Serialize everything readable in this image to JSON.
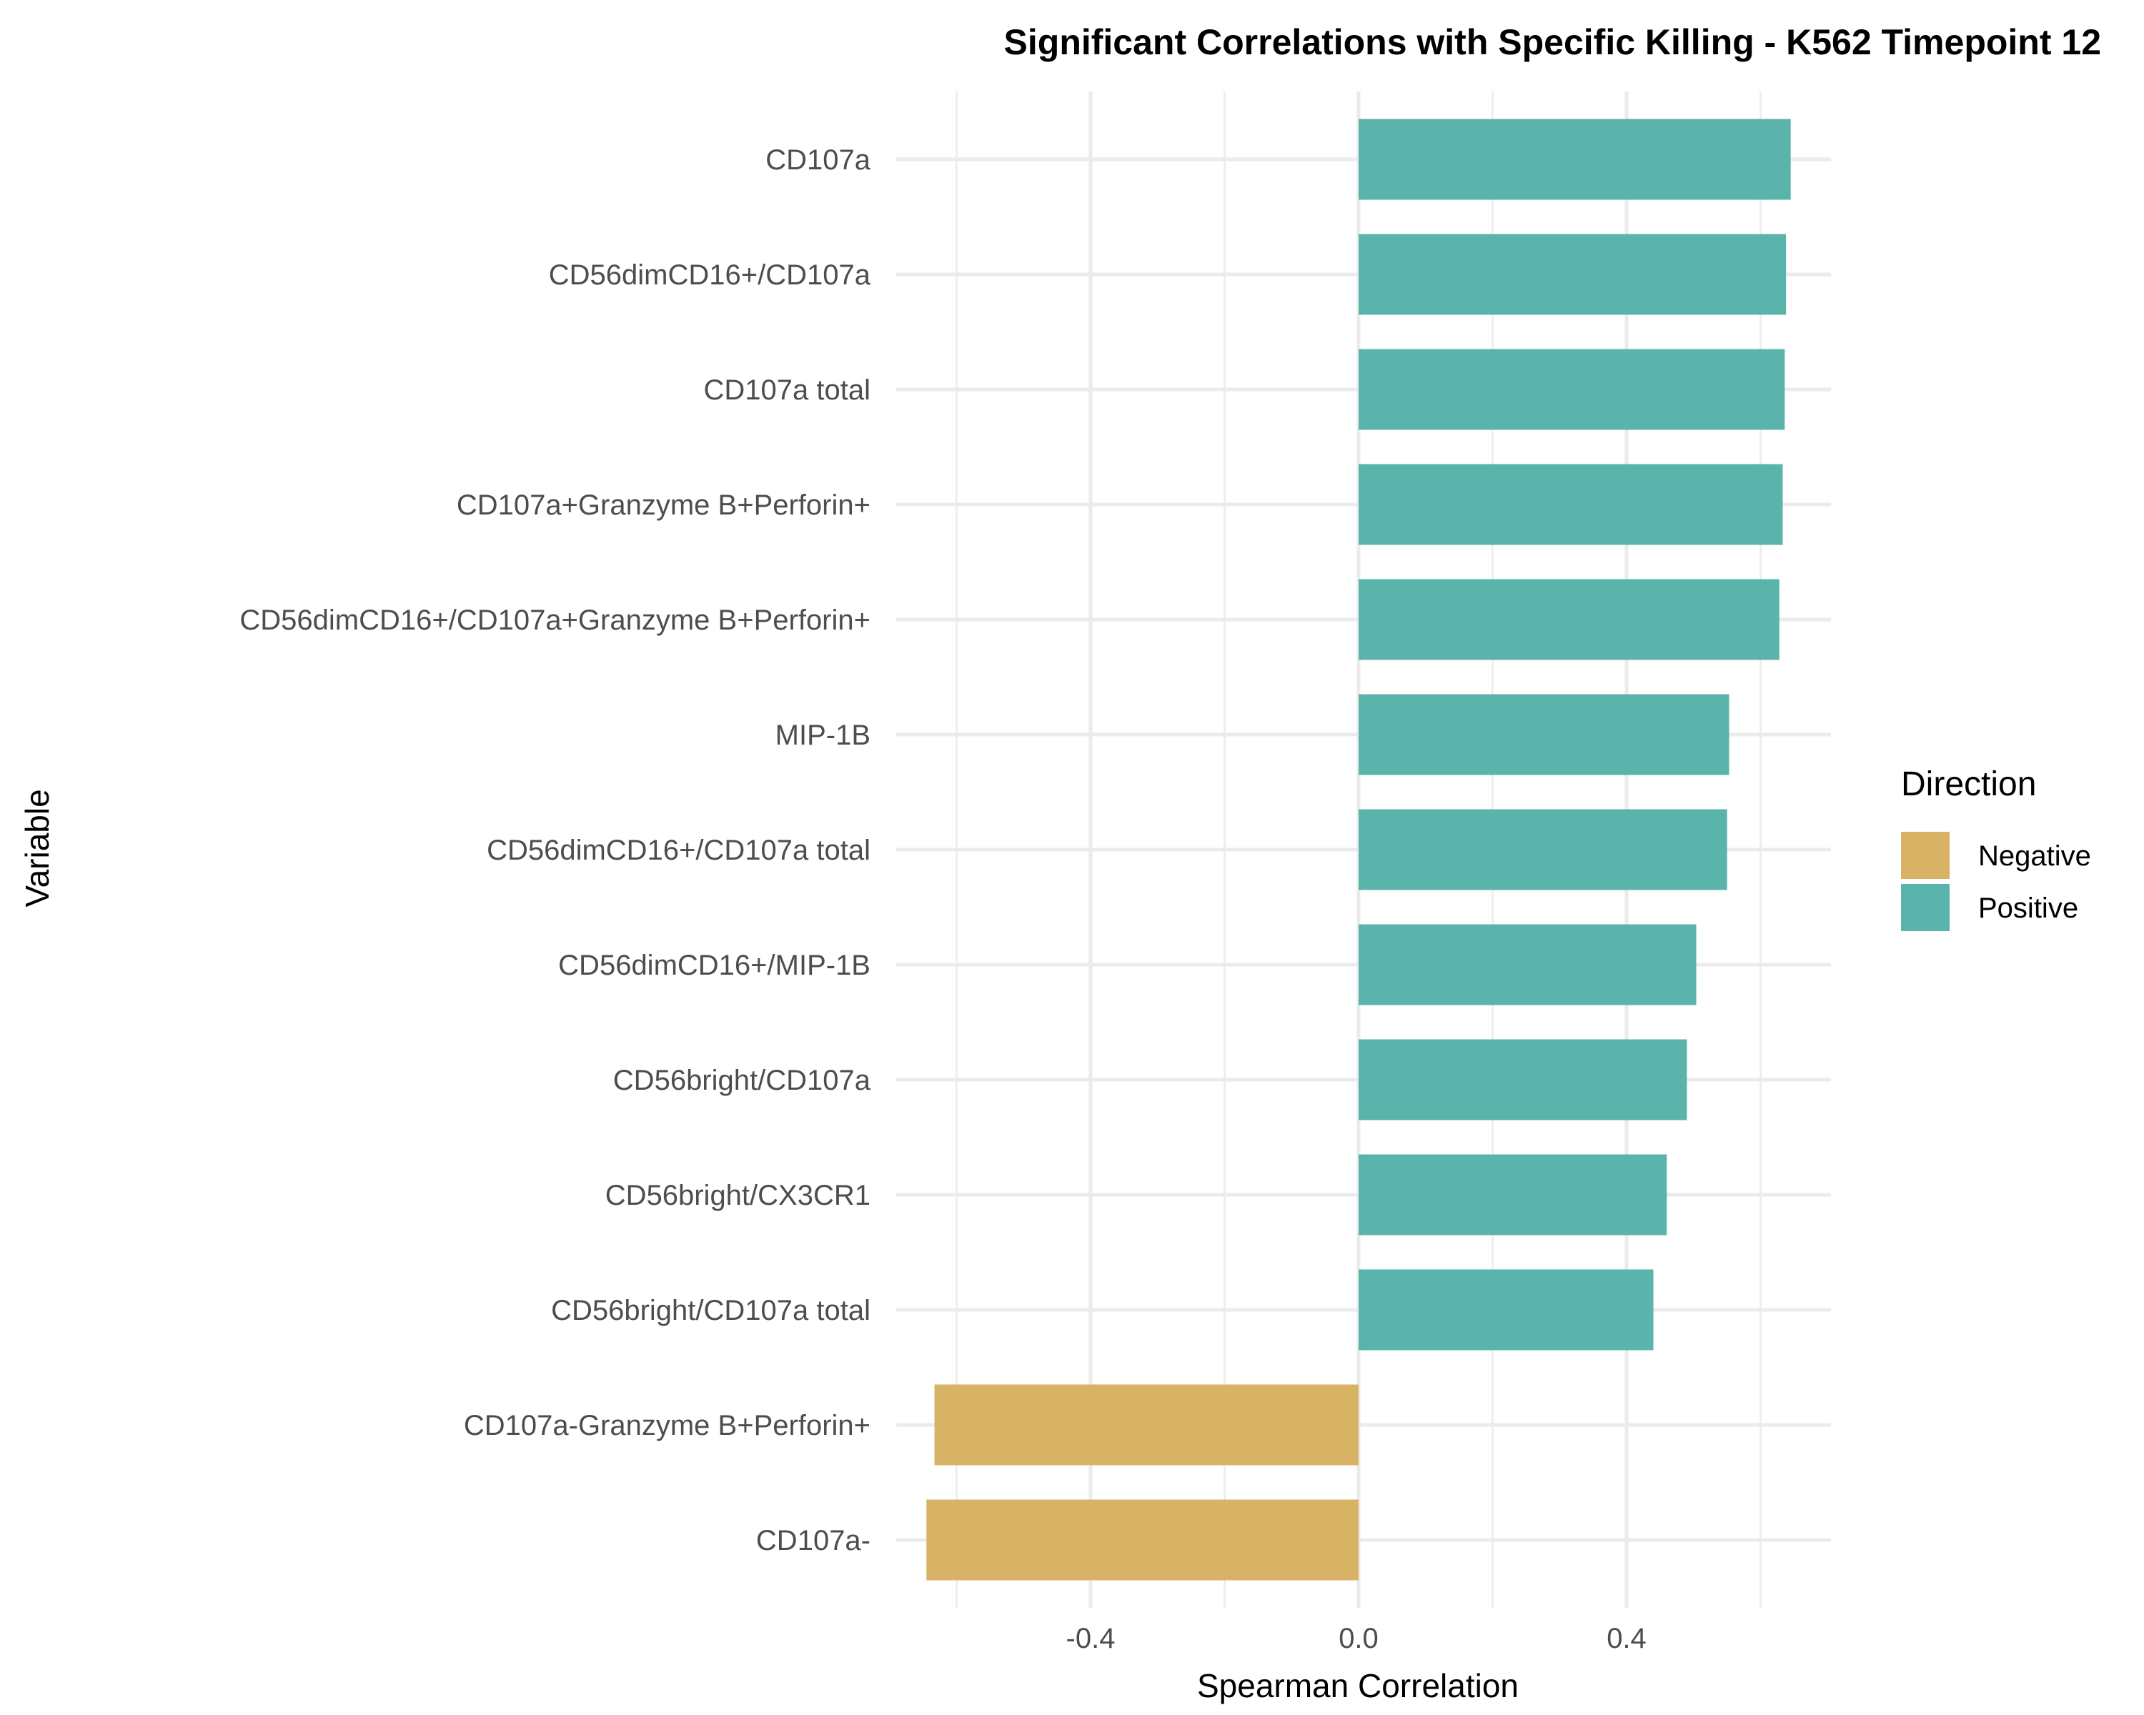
{
  "chart_data": {
    "type": "bar",
    "orientation": "horizontal",
    "title": "Significant Correlations with Specific Killing - K562 Timepoint 12",
    "xlabel": "Spearman Correlation",
    "ylabel": "Variable",
    "xlim": [
      -0.71,
      0.71
    ],
    "x_ticks": [
      -0.4,
      0.0,
      0.4
    ],
    "x_tick_labels": [
      "-0.4",
      "0.0",
      "0.4"
    ],
    "grid": true,
    "legend": {
      "title": "Direction",
      "position": "right",
      "entries": [
        {
          "label": "Negative",
          "color": "#d8b365"
        },
        {
          "label": "Positive",
          "color": "#5ab4ac"
        }
      ]
    },
    "categories": [
      "CD107a",
      "CD56dimCD16+/CD107a",
      "CD107a total",
      "CD107a+Granzyme B+Perforin+",
      "CD56dimCD16+/CD107a+Granzyme B+Perforin+",
      "MIP-1B",
      "CD56dimCD16+/CD107a total",
      "CD56dimCD16+/MIP-1B",
      "CD56bright/CD107a",
      "CD56bright/CX3CR1",
      "CD56bright/CD107a total",
      "CD107a-Granzyme B+Perforin+",
      "CD107a-"
    ],
    "values": [
      0.645,
      0.638,
      0.636,
      0.633,
      0.628,
      0.553,
      0.55,
      0.504,
      0.49,
      0.46,
      0.44,
      -0.633,
      -0.645
    ],
    "direction": [
      "Positive",
      "Positive",
      "Positive",
      "Positive",
      "Positive",
      "Positive",
      "Positive",
      "Positive",
      "Positive",
      "Positive",
      "Positive",
      "Negative",
      "Negative"
    ]
  }
}
